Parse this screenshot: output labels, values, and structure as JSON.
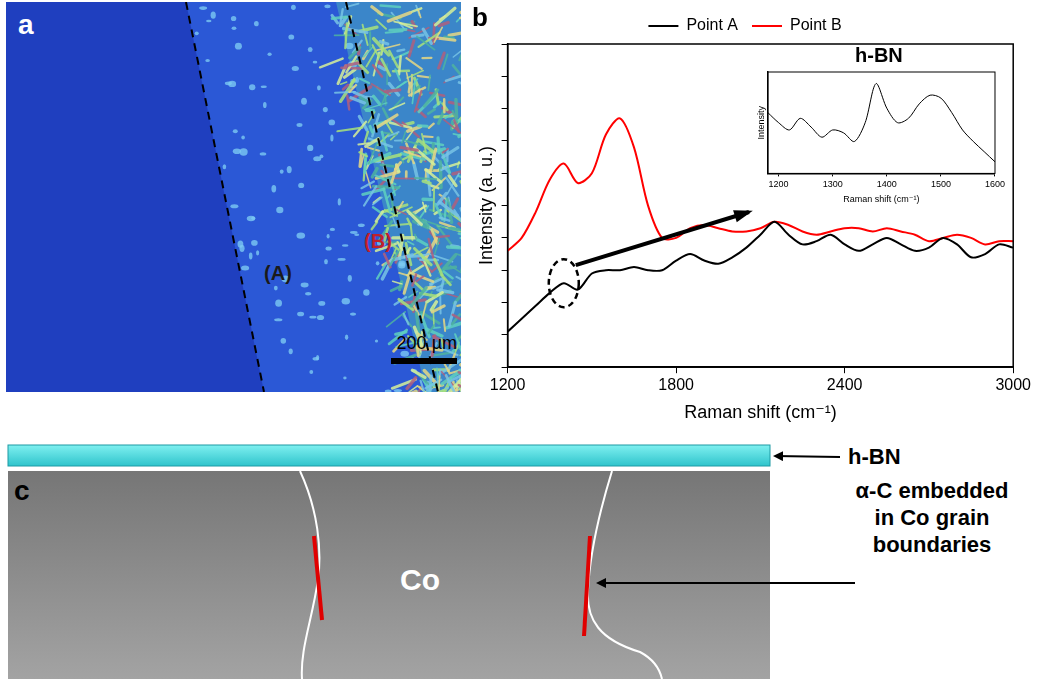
{
  "panels": {
    "a": {
      "letter": "a",
      "regions": [
        "(A)",
        "(B)"
      ],
      "scale_bar": "200 µm"
    },
    "b": {
      "letter": "b"
    },
    "c": {
      "letter": "c",
      "layer": "h-BN",
      "substrate": "Co",
      "annotation": "α-C embedded in Co grain boundaries"
    }
  },
  "chart_data": [
    {
      "type": "line",
      "x_label": "Raman shift (cm⁻¹)",
      "y_label": "Intensity (a. u.)",
      "x": [
        1200,
        1250,
        1300,
        1350,
        1400,
        1450,
        1500,
        1550,
        1600,
        1650,
        1700,
        1750,
        1800,
        1850,
        1900,
        1950,
        2000,
        2050,
        2100,
        2150,
        2200,
        2250,
        2300,
        2350,
        2400,
        2450,
        2500,
        2550,
        2600,
        2650,
        2700,
        2750,
        2800,
        2850,
        2900,
        2950,
        3000
      ],
      "series": [
        {
          "name": "Point A",
          "color": "#000000",
          "values": [
            11,
            15,
            19,
            23,
            26,
            24,
            29,
            30,
            30,
            31,
            30,
            30,
            33,
            35,
            33,
            32,
            34,
            37,
            41,
            45,
            41,
            38,
            39,
            41,
            38,
            36,
            38,
            40,
            38,
            36,
            37,
            40,
            38,
            34,
            35,
            38,
            37
          ]
        },
        {
          "name": "Point B",
          "color": "#ff0000",
          "values": [
            36,
            40,
            48,
            58,
            63,
            57,
            60,
            72,
            77,
            68,
            50,
            40,
            40,
            43,
            44,
            43,
            42,
            42,
            43,
            45,
            44,
            42,
            41,
            42,
            43,
            43,
            42,
            43,
            42,
            41,
            39,
            40,
            41,
            40,
            38,
            39,
            39
          ]
        }
      ],
      "xlim": [
        1200,
        3000
      ],
      "xticks": [
        1200,
        1800,
        2400,
        3000
      ],
      "ylim": [
        0,
        100
      ],
      "yticks": [
        0,
        10,
        20,
        30,
        40,
        50,
        60,
        70,
        80,
        90,
        100
      ],
      "tick_labels": "x",
      "grid": false,
      "legend": "top",
      "annotations": [
        "h-BN"
      ]
    },
    {
      "type": "line",
      "x_label": "Raman shift (cm⁻¹)",
      "y_label": "Intensity",
      "x": [
        1180,
        1200,
        1220,
        1240,
        1260,
        1280,
        1300,
        1320,
        1340,
        1360,
        1380,
        1400,
        1420,
        1440,
        1460,
        1480,
        1500,
        1520,
        1540,
        1560,
        1580,
        1600
      ],
      "series": [
        {
          "color": "#000000",
          "values": [
            62,
            55,
            50,
            58,
            52,
            45,
            50,
            48,
            42,
            55,
            82,
            65,
            55,
            58,
            68,
            74,
            72,
            62,
            50,
            42,
            35,
            28
          ]
        }
      ],
      "xlim": [
        1180,
        1600
      ],
      "xticks": [
        1200,
        1300,
        1400,
        1500,
        1600
      ],
      "ylim": [
        20,
        90
      ],
      "tick_labels": "x",
      "grid": false
    }
  ]
}
